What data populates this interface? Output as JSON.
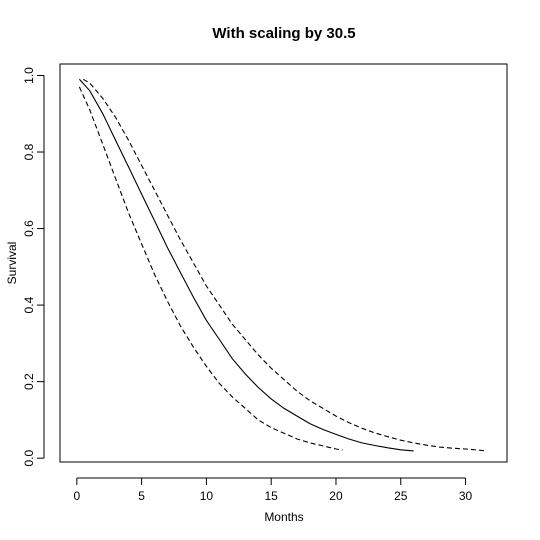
{
  "chart_data": {
    "type": "line",
    "title": "With scaling by 30.5",
    "xlabel": "Months",
    "ylabel": "Survival",
    "xlim": [
      -1.3,
      33.2
    ],
    "ylim": [
      -0.01,
      1.03
    ],
    "xticks": [
      0,
      5,
      10,
      15,
      20,
      25,
      30
    ],
    "yticks": [
      0.0,
      0.2,
      0.4,
      0.6,
      0.8,
      1.0
    ],
    "ytick_labels": [
      "0.0",
      "0.2",
      "0.4",
      "0.6",
      "0.8",
      "1.0"
    ],
    "grid": false,
    "series": [
      {
        "style": "solid",
        "x": [
          0.2,
          1,
          2,
          3,
          4,
          5,
          6,
          7,
          8,
          9,
          10,
          11,
          12,
          13,
          14,
          15,
          16,
          17,
          18,
          19,
          20,
          21,
          22,
          23,
          24,
          25,
          26
        ],
        "y": [
          0.99,
          0.96,
          0.9,
          0.83,
          0.76,
          0.69,
          0.62,
          0.55,
          0.485,
          0.42,
          0.36,
          0.31,
          0.26,
          0.22,
          0.185,
          0.155,
          0.13,
          0.11,
          0.09,
          0.075,
          0.062,
          0.05,
          0.04,
          0.033,
          0.027,
          0.022,
          0.019
        ]
      },
      {
        "style": "dashed",
        "x": [
          0.5,
          1,
          2,
          3,
          4,
          5,
          6,
          7,
          8,
          9,
          10,
          11,
          12,
          13,
          14,
          15,
          16,
          17,
          18,
          19,
          20,
          21,
          22,
          23,
          24,
          25,
          26,
          27,
          28,
          29,
          30,
          31,
          31.6
        ],
        "y": [
          0.99,
          0.98,
          0.94,
          0.89,
          0.83,
          0.765,
          0.7,
          0.635,
          0.57,
          0.51,
          0.45,
          0.4,
          0.35,
          0.31,
          0.27,
          0.235,
          0.205,
          0.175,
          0.15,
          0.13,
          0.11,
          0.093,
          0.078,
          0.066,
          0.056,
          0.047,
          0.04,
          0.034,
          0.029,
          0.026,
          0.024,
          0.021,
          0.019
        ]
      },
      {
        "style": "dashed",
        "x": [
          0.2,
          1,
          2,
          3,
          4,
          5,
          6,
          7,
          8,
          9,
          10,
          11,
          12,
          13,
          14,
          15,
          16,
          17,
          18,
          19,
          20,
          20.5
        ],
        "y": [
          0.97,
          0.91,
          0.82,
          0.73,
          0.64,
          0.56,
          0.48,
          0.41,
          0.345,
          0.29,
          0.24,
          0.195,
          0.16,
          0.13,
          0.1,
          0.08,
          0.065,
          0.05,
          0.04,
          0.032,
          0.024,
          0.021
        ]
      }
    ]
  }
}
